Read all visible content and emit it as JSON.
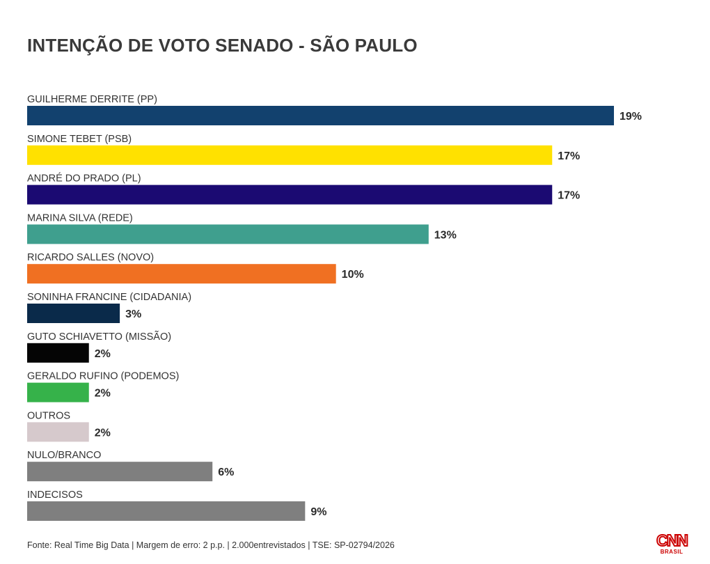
{
  "chart_data": {
    "type": "bar",
    "orientation": "horizontal",
    "title": "INTENÇÃO DE VOTO SENADO - SÃO PAULO",
    "categories": [
      "GUILHERME DERRITE (PP)",
      "SIMONE TEBET (PSB)",
      "ANDRÉ DO PRADO (PL)",
      "MARINA SILVA (REDE)",
      "RICARDO SALLES (NOVO)",
      "SONINHA FRANCINE (CIDADANIA)",
      "GUTO SCHIAVETTO (MISSÃO)",
      "GERALDO RUFINO (PODEMOS)",
      "OUTROS",
      "NULO/BRANCO",
      "INDECISOS"
    ],
    "values": [
      19,
      17,
      17,
      13,
      10,
      3,
      2,
      2,
      2,
      6,
      9
    ],
    "value_labels": [
      "19%",
      "17%",
      "17%",
      "13%",
      "10%",
      "3%",
      "2%",
      "2%",
      "2%",
      "6%",
      "9%"
    ],
    "colors": [
      "#12416e",
      "#ffe100",
      "#1b0a72",
      "#3f9f8e",
      "#f07022",
      "#0a2a4a",
      "#050505",
      "#36b24a",
      "#d6c9cc",
      "#7f7f7f",
      "#7f7f7f"
    ],
    "unit": "%",
    "xlim": [
      0,
      19
    ],
    "grid": false,
    "legend": "none"
  },
  "footer": {
    "source": "Fonte: Real Time Big Data | Margem de erro: 2 p.p. | 2.000entrevistados | TSE: SP-02794/2026"
  },
  "logo": {
    "mark": "CNN",
    "sub": "BRASIL"
  }
}
